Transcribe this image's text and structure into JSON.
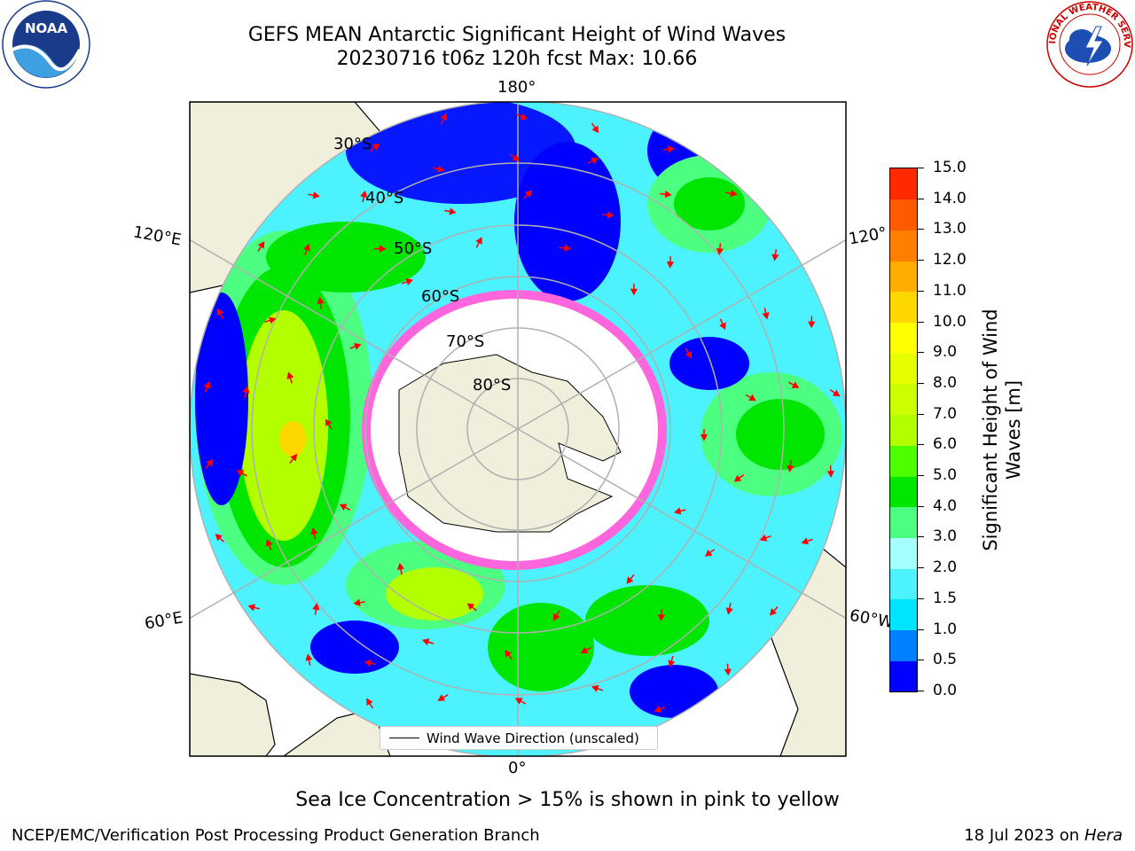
{
  "title_line1": "GEFS MEAN Antarctic Significant Height of Wind Waves",
  "title_line2": "20230716 t06z 120h fcst   Max: 10.66",
  "longitude_labels": {
    "top": "180°",
    "bottom": "0°",
    "left_upper": "120°E",
    "left_lower": "60°E",
    "right_upper": "120°",
    "right_lower": "60°W"
  },
  "latitude_labels": [
    "30°S",
    "40°S",
    "50°S",
    "60°S",
    "70°S",
    "80°S"
  ],
  "colorbar": {
    "label": "Significant Height of Wind Waves [m]",
    "ticks": [
      "0.0",
      "0.5",
      "1.0",
      "1.5",
      "2.0",
      "3.0",
      "4.0",
      "5.0",
      "6.0",
      "7.0",
      "8.0",
      "9.0",
      "10.0",
      "11.0",
      "12.0",
      "13.0",
      "14.0",
      "15.0"
    ],
    "colors": [
      "#0000ff",
      "#0080ff",
      "#00e5ff",
      "#4df2ff",
      "#a6ffff",
      "#4dff80",
      "#00e600",
      "#4dff00",
      "#b3ff00",
      "#ccff00",
      "#e6ff00",
      "#ffff00",
      "#ffd700",
      "#ffae00",
      "#ff8000",
      "#ff5a00",
      "#ff2a00"
    ]
  },
  "legend_label": "Wind Wave Direction (unscaled)",
  "caption": "Sea Ice Concentration > 15% is shown in pink to yellow",
  "footer_left": "NCEP/EMC/Verification Post Processing Product Generation Branch",
  "footer_date": "18 Jul 2023 on",
  "footer_machine": "Hera",
  "logos": {
    "left": "NOAA",
    "right": "NATIONAL WEATHER SERVICE"
  }
}
